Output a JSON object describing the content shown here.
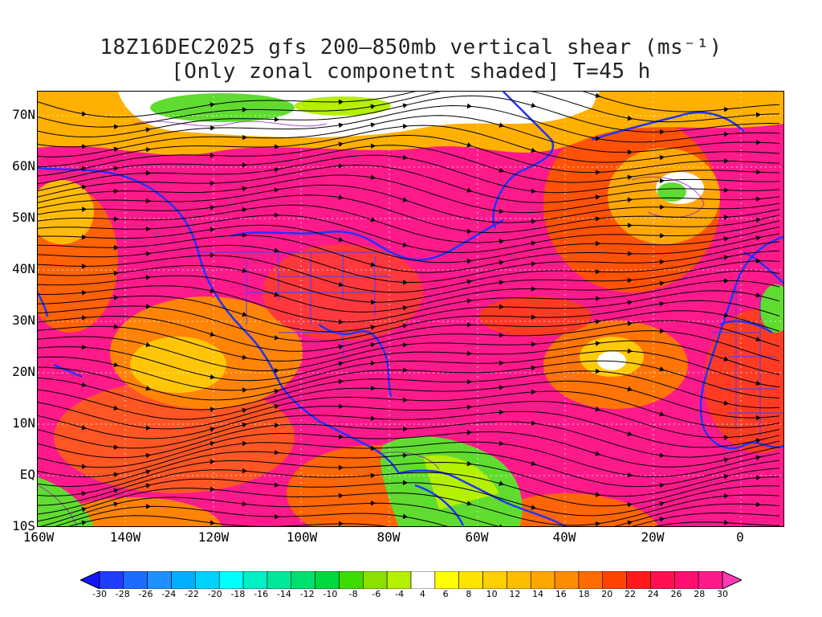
{
  "title": {
    "line1": "18Z16DEC2025 gfs 200–850mb vertical shear (ms⁻¹)",
    "line2": "[Only zonal componetnt shaded] T=45 h"
  },
  "map": {
    "y_labels": [
      "70N",
      "60N",
      "50N",
      "40N",
      "30N",
      "20N",
      "10N",
      "EQ",
      "10S"
    ],
    "x_labels": [
      "160W",
      "140W",
      "120W",
      "100W",
      "80W",
      "60W",
      "40W",
      "20W",
      "0"
    ],
    "lat_range": [
      -10,
      75
    ],
    "lon_range": [
      -160,
      10
    ],
    "colors": {
      "strong_positive": "#ff1a8c",
      "moderate": "#ff3d1f",
      "weak": "#ffb000",
      "near_zero": "#ffffff",
      "negative": "#50e050",
      "coastline": "#2233ff",
      "streamline": "#000000"
    }
  },
  "colorbar": {
    "labels": [
      "-30",
      "-28",
      "-26",
      "-24",
      "-22",
      "-20",
      "-18",
      "-16",
      "-14",
      "-12",
      "-10",
      "-8",
      "-6",
      "-4",
      "4",
      "6",
      "8",
      "10",
      "12",
      "14",
      "16",
      "18",
      "20",
      "22",
      "24",
      "26",
      "28",
      "30"
    ],
    "colors": [
      "#1414ff",
      "#1f3cff",
      "#1e6cff",
      "#1e90ff",
      "#00aeff",
      "#00d2ff",
      "#00ffff",
      "#00f0c8",
      "#00e89a",
      "#00e070",
      "#00d840",
      "#3cdc00",
      "#8ce000",
      "#b4f000",
      "#ffffff",
      "#ffff00",
      "#ffe400",
      "#ffd000",
      "#ffbd00",
      "#ffa700",
      "#ff8c00",
      "#ff6b00",
      "#ff4400",
      "#ff1a1a",
      "#ff1050",
      "#ff1070",
      "#ff1a8c",
      "#ff3ab4"
    ]
  }
}
